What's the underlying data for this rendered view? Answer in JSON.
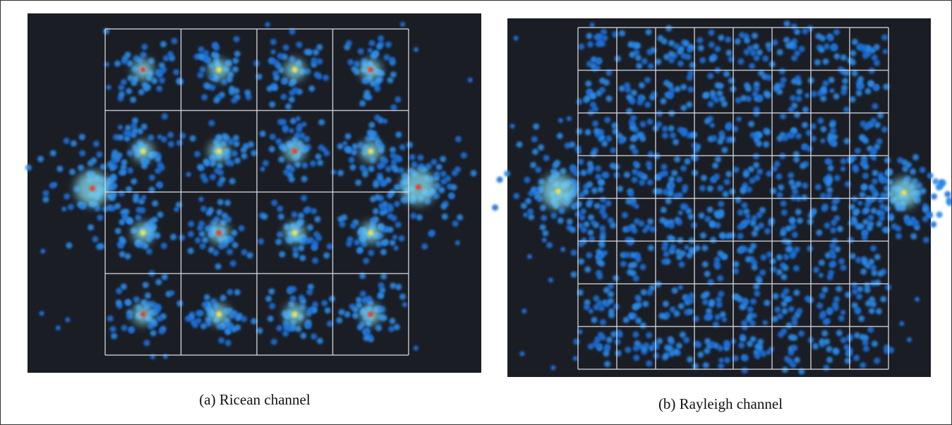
{
  "figure": {
    "panels": [
      {
        "caption": "(a) Ricean channel"
      },
      {
        "caption": "(b) Rayleigh channel"
      }
    ]
  }
}
